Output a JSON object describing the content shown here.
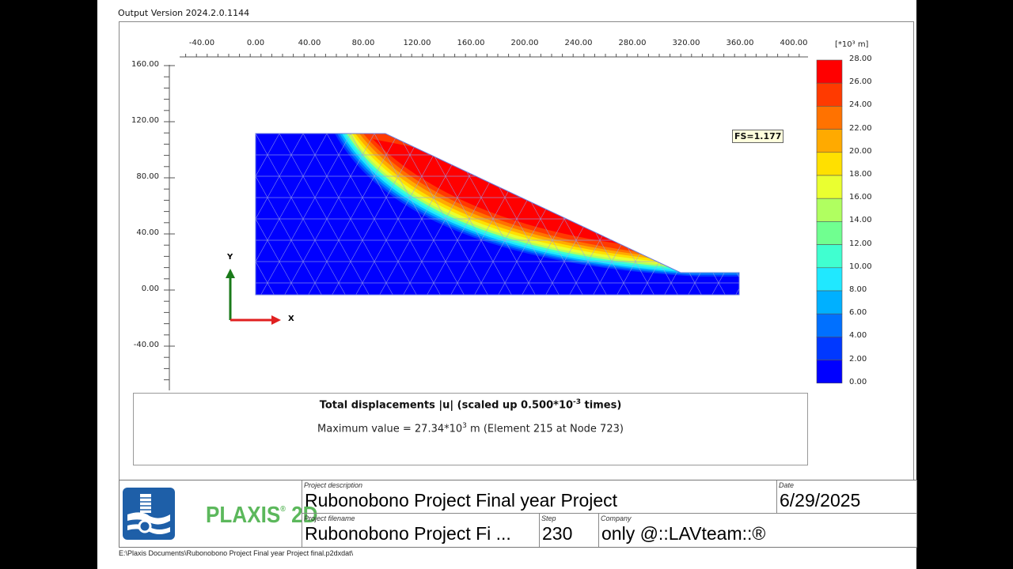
{
  "header": {
    "version": "Output Version 2024.2.0.1144"
  },
  "chart_data": {
    "type": "heatmap",
    "title": "Total displacements |u| (scaled up 0.500*10^-3 times)",
    "subtitle": "Maximum value = 27.34*10^3 m (Element 215 at Node 723)",
    "x_ticks": [
      "-40.00",
      "0.00",
      "40.00",
      "80.00",
      "120.00",
      "160.00",
      "200.00",
      "240.00",
      "280.00",
      "320.00",
      "360.00",
      "400.00"
    ],
    "y_ticks": [
      "160.00",
      "120.00",
      "80.00",
      "40.00",
      "0.00",
      "-40.00"
    ],
    "xlim": [
      -55,
      410
    ],
    "ylim": [
      -75,
      165
    ],
    "geometry": {
      "polygon": [
        [
          0,
          -3
        ],
        [
          0,
          112
        ],
        [
          96,
          112
        ],
        [
          316,
          12
        ],
        [
          360,
          12
        ],
        [
          360,
          -3
        ]
      ],
      "crest_x": 96,
      "toe_x": 316,
      "crest_y": 112,
      "toe_y": 12
    },
    "legend": {
      "unit": "[*10³ m]",
      "values": [
        "28.00",
        "26.00",
        "24.00",
        "22.00",
        "20.00",
        "18.00",
        "16.00",
        "14.00",
        "12.00",
        "10.00",
        "8.00",
        "6.00",
        "4.00",
        "2.00",
        "0.00"
      ],
      "colors": [
        "#ff0000",
        "#ff3a00",
        "#ff7200",
        "#ffaa00",
        "#ffe000",
        "#eaff30",
        "#b0ff60",
        "#70ff90",
        "#40ffd0",
        "#20e8ff",
        "#00b0ff",
        "#0070ff",
        "#0038ff",
        "#0000ff"
      ]
    },
    "annotation": "FS=1.177",
    "axes_indicator": {
      "x": "X",
      "y": "Y"
    }
  },
  "caption": {
    "title_main": "Total displacements |u| (scaled up 0.500*10",
    "title_exp": "-3",
    "title_end": " times)",
    "max_main": "Maximum value = 27.34*10",
    "max_exp": "3",
    "max_end": " m (Element 215 at Node 723)"
  },
  "titleblock": {
    "brand": "PLAXIS",
    "brand_suffix": "2D",
    "project_description_label": "Project description",
    "project_description": "Rubonobono Project Final year Project",
    "date_label": "Date",
    "date": "6/29/2025",
    "project_filename_label": "Project filename",
    "project_filename": "Rubonobono Project Fi ...",
    "step_label": "Step",
    "step": "230",
    "company_label": "Company",
    "company": "only @::LAVteam::®"
  },
  "footer": {
    "path": "E:\\Plaxis Documents\\Rubonobono Project Final year Project final.p2dxdat\\"
  }
}
